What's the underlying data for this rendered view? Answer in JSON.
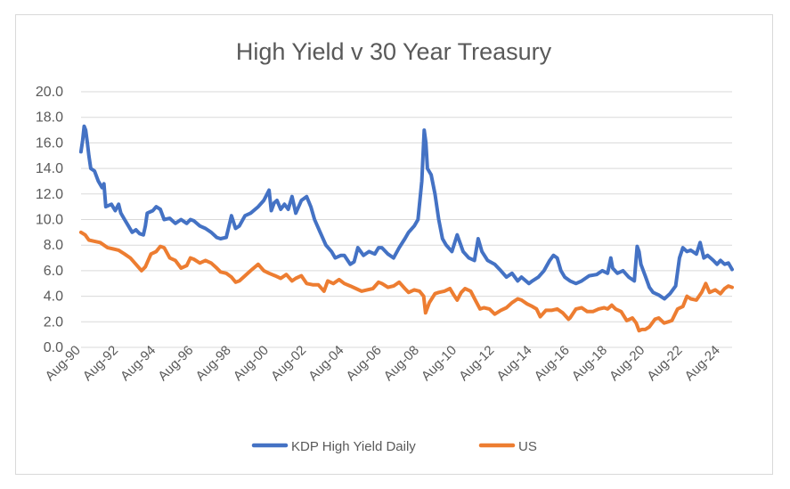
{
  "chart_data": {
    "type": "line",
    "title": "High Yield v 30 Year Treasury",
    "xlabel": "",
    "ylabel": "",
    "ylim": [
      0,
      20
    ],
    "yticks": [
      "0.0",
      "2.0",
      "4.0",
      "6.0",
      "8.0",
      "10.0",
      "12.0",
      "14.0",
      "16.0",
      "18.0",
      "20.0"
    ],
    "xticks": [
      "Aug-90",
      "Aug-92",
      "Aug-94",
      "Aug-96",
      "Aug-98",
      "Aug-00",
      "Aug-02",
      "Aug-04",
      "Aug-06",
      "Aug-08",
      "Aug-10",
      "Aug-12",
      "Aug-14",
      "Aug-16",
      "Aug-18",
      "Aug-20",
      "Aug-22",
      "Aug-24"
    ],
    "xlim": [
      1990.583,
      2025.2
    ],
    "grid": true,
    "legend": "bottom-center",
    "series": [
      {
        "name": "KDP High Yield Daily",
        "color": "#4472c4",
        "points": [
          [
            1990.58,
            15.3
          ],
          [
            1990.67,
            16.2
          ],
          [
            1990.75,
            17.3
          ],
          [
            1990.83,
            17.0
          ],
          [
            1990.92,
            16.0
          ],
          [
            1991.0,
            15.0
          ],
          [
            1991.1,
            14.0
          ],
          [
            1991.3,
            13.8
          ],
          [
            1991.5,
            13.0
          ],
          [
            1991.7,
            12.5
          ],
          [
            1991.8,
            12.8
          ],
          [
            1991.9,
            11.0
          ],
          [
            1992.2,
            11.2
          ],
          [
            1992.4,
            10.7
          ],
          [
            1992.58,
            11.2
          ],
          [
            1992.7,
            10.5
          ],
          [
            1992.9,
            10.0
          ],
          [
            1993.1,
            9.5
          ],
          [
            1993.3,
            9.0
          ],
          [
            1993.5,
            9.2
          ],
          [
            1993.7,
            8.9
          ],
          [
            1993.9,
            8.8
          ],
          [
            1994.0,
            9.5
          ],
          [
            1994.1,
            10.5
          ],
          [
            1994.4,
            10.7
          ],
          [
            1994.58,
            11.0
          ],
          [
            1994.8,
            10.8
          ],
          [
            1995.0,
            10.0
          ],
          [
            1995.3,
            10.1
          ],
          [
            1995.6,
            9.7
          ],
          [
            1995.9,
            10.0
          ],
          [
            1996.2,
            9.7
          ],
          [
            1996.4,
            10.0
          ],
          [
            1996.58,
            9.9
          ],
          [
            1996.9,
            9.5
          ],
          [
            1997.2,
            9.3
          ],
          [
            1997.5,
            9.0
          ],
          [
            1997.8,
            8.6
          ],
          [
            1998.0,
            8.5
          ],
          [
            1998.3,
            8.6
          ],
          [
            1998.58,
            10.3
          ],
          [
            1998.8,
            9.3
          ],
          [
            1999.0,
            9.5
          ],
          [
            1999.3,
            10.3
          ],
          [
            1999.6,
            10.5
          ],
          [
            2000.0,
            11.0
          ],
          [
            2000.3,
            11.5
          ],
          [
            2000.58,
            12.3
          ],
          [
            2000.7,
            10.7
          ],
          [
            2000.85,
            11.3
          ],
          [
            2001.0,
            11.5
          ],
          [
            2001.2,
            10.8
          ],
          [
            2001.4,
            11.2
          ],
          [
            2001.6,
            10.8
          ],
          [
            2001.8,
            11.8
          ],
          [
            2002.0,
            10.5
          ],
          [
            2002.3,
            11.5
          ],
          [
            2002.58,
            11.8
          ],
          [
            2002.8,
            11.0
          ],
          [
            2003.0,
            10.0
          ],
          [
            2003.3,
            9.0
          ],
          [
            2003.6,
            8.0
          ],
          [
            2003.9,
            7.5
          ],
          [
            2004.1,
            7.0
          ],
          [
            2004.4,
            7.2
          ],
          [
            2004.58,
            7.2
          ],
          [
            2004.9,
            6.5
          ],
          [
            2005.1,
            6.7
          ],
          [
            2005.3,
            7.8
          ],
          [
            2005.6,
            7.2
          ],
          [
            2005.9,
            7.5
          ],
          [
            2006.2,
            7.3
          ],
          [
            2006.4,
            7.8
          ],
          [
            2006.58,
            7.8
          ],
          [
            2006.9,
            7.3
          ],
          [
            2007.2,
            7.0
          ],
          [
            2007.5,
            7.8
          ],
          [
            2007.8,
            8.5
          ],
          [
            2008.0,
            9.0
          ],
          [
            2008.3,
            9.5
          ],
          [
            2008.5,
            10.0
          ],
          [
            2008.7,
            13.0
          ],
          [
            2008.83,
            17.0
          ],
          [
            2008.92,
            16.0
          ],
          [
            2009.0,
            14.0
          ],
          [
            2009.2,
            13.5
          ],
          [
            2009.4,
            12.0
          ],
          [
            2009.6,
            10.0
          ],
          [
            2009.8,
            8.5
          ],
          [
            2010.0,
            8.0
          ],
          [
            2010.3,
            7.5
          ],
          [
            2010.58,
            8.8
          ],
          [
            2010.9,
            7.5
          ],
          [
            2011.2,
            7.0
          ],
          [
            2011.5,
            6.8
          ],
          [
            2011.7,
            8.5
          ],
          [
            2011.9,
            7.5
          ],
          [
            2012.2,
            6.8
          ],
          [
            2012.58,
            6.5
          ],
          [
            2012.9,
            6.0
          ],
          [
            2013.2,
            5.5
          ],
          [
            2013.5,
            5.8
          ],
          [
            2013.8,
            5.2
          ],
          [
            2014.0,
            5.5
          ],
          [
            2014.4,
            5.0
          ],
          [
            2014.58,
            5.2
          ],
          [
            2014.9,
            5.5
          ],
          [
            2015.2,
            6.0
          ],
          [
            2015.5,
            6.8
          ],
          [
            2015.7,
            7.2
          ],
          [
            2015.9,
            7.0
          ],
          [
            2016.1,
            6.0
          ],
          [
            2016.3,
            5.5
          ],
          [
            2016.58,
            5.2
          ],
          [
            2016.9,
            5.0
          ],
          [
            2017.2,
            5.2
          ],
          [
            2017.6,
            5.6
          ],
          [
            2018.0,
            5.7
          ],
          [
            2018.3,
            6.0
          ],
          [
            2018.58,
            5.8
          ],
          [
            2018.75,
            7.0
          ],
          [
            2018.85,
            6.2
          ],
          [
            2019.1,
            5.8
          ],
          [
            2019.4,
            6.0
          ],
          [
            2019.7,
            5.5
          ],
          [
            2020.0,
            5.2
          ],
          [
            2020.15,
            7.9
          ],
          [
            2020.25,
            7.5
          ],
          [
            2020.35,
            6.5
          ],
          [
            2020.58,
            5.6
          ],
          [
            2020.8,
            4.7
          ],
          [
            2021.0,
            4.3
          ],
          [
            2021.3,
            4.1
          ],
          [
            2021.6,
            3.8
          ],
          [
            2021.9,
            4.2
          ],
          [
            2022.2,
            4.8
          ],
          [
            2022.4,
            7.0
          ],
          [
            2022.58,
            7.8
          ],
          [
            2022.8,
            7.5
          ],
          [
            2023.0,
            7.6
          ],
          [
            2023.3,
            7.3
          ],
          [
            2023.5,
            8.2
          ],
          [
            2023.7,
            7.0
          ],
          [
            2023.9,
            7.2
          ],
          [
            2024.2,
            6.8
          ],
          [
            2024.4,
            6.5
          ],
          [
            2024.58,
            6.8
          ],
          [
            2024.8,
            6.5
          ],
          [
            2025.0,
            6.6
          ],
          [
            2025.2,
            6.1
          ]
        ]
      },
      {
        "name": "US",
        "color": "#ed7d31",
        "points": [
          [
            1990.58,
            9.0
          ],
          [
            1990.8,
            8.8
          ],
          [
            1991.0,
            8.4
          ],
          [
            1991.3,
            8.3
          ],
          [
            1991.6,
            8.2
          ],
          [
            1992.0,
            7.8
          ],
          [
            1992.3,
            7.7
          ],
          [
            1992.58,
            7.6
          ],
          [
            1992.9,
            7.3
          ],
          [
            1993.2,
            7.0
          ],
          [
            1993.5,
            6.5
          ],
          [
            1993.8,
            6.0
          ],
          [
            1994.0,
            6.3
          ],
          [
            1994.3,
            7.3
          ],
          [
            1994.58,
            7.5
          ],
          [
            1994.8,
            7.9
          ],
          [
            1995.0,
            7.8
          ],
          [
            1995.3,
            7.0
          ],
          [
            1995.6,
            6.8
          ],
          [
            1995.9,
            6.2
          ],
          [
            1996.2,
            6.4
          ],
          [
            1996.4,
            7.0
          ],
          [
            1996.58,
            6.9
          ],
          [
            1996.9,
            6.6
          ],
          [
            1997.2,
            6.8
          ],
          [
            1997.5,
            6.6
          ],
          [
            1997.8,
            6.2
          ],
          [
            1998.0,
            5.9
          ],
          [
            1998.3,
            5.8
          ],
          [
            1998.58,
            5.5
          ],
          [
            1998.8,
            5.1
          ],
          [
            1999.0,
            5.2
          ],
          [
            1999.3,
            5.6
          ],
          [
            1999.6,
            6.0
          ],
          [
            2000.0,
            6.5
          ],
          [
            2000.3,
            6.0
          ],
          [
            2000.58,
            5.8
          ],
          [
            2000.9,
            5.6
          ],
          [
            2001.2,
            5.4
          ],
          [
            2001.5,
            5.7
          ],
          [
            2001.8,
            5.2
          ],
          [
            2002.0,
            5.4
          ],
          [
            2002.3,
            5.6
          ],
          [
            2002.58,
            5.0
          ],
          [
            2002.9,
            4.9
          ],
          [
            2003.2,
            4.9
          ],
          [
            2003.5,
            4.4
          ],
          [
            2003.7,
            5.2
          ],
          [
            2004.0,
            5.0
          ],
          [
            2004.3,
            5.3
          ],
          [
            2004.58,
            5.0
          ],
          [
            2004.9,
            4.8
          ],
          [
            2005.2,
            4.6
          ],
          [
            2005.5,
            4.4
          ],
          [
            2005.8,
            4.5
          ],
          [
            2006.1,
            4.6
          ],
          [
            2006.4,
            5.1
          ],
          [
            2006.58,
            5.0
          ],
          [
            2006.9,
            4.7
          ],
          [
            2007.2,
            4.8
          ],
          [
            2007.5,
            5.1
          ],
          [
            2007.8,
            4.6
          ],
          [
            2008.0,
            4.3
          ],
          [
            2008.3,
            4.5
          ],
          [
            2008.58,
            4.4
          ],
          [
            2008.8,
            4.0
          ],
          [
            2008.9,
            2.7
          ],
          [
            2009.1,
            3.5
          ],
          [
            2009.4,
            4.2
          ],
          [
            2009.6,
            4.3
          ],
          [
            2009.9,
            4.4
          ],
          [
            2010.2,
            4.6
          ],
          [
            2010.4,
            4.1
          ],
          [
            2010.58,
            3.7
          ],
          [
            2010.8,
            4.3
          ],
          [
            2011.0,
            4.6
          ],
          [
            2011.3,
            4.4
          ],
          [
            2011.58,
            3.6
          ],
          [
            2011.8,
            3.0
          ],
          [
            2012.0,
            3.1
          ],
          [
            2012.3,
            3.0
          ],
          [
            2012.58,
            2.6
          ],
          [
            2012.9,
            2.9
          ],
          [
            2013.2,
            3.1
          ],
          [
            2013.5,
            3.5
          ],
          [
            2013.8,
            3.8
          ],
          [
            2014.0,
            3.7
          ],
          [
            2014.3,
            3.4
          ],
          [
            2014.58,
            3.2
          ],
          [
            2014.8,
            3.0
          ],
          [
            2015.0,
            2.4
          ],
          [
            2015.3,
            2.9
          ],
          [
            2015.6,
            2.9
          ],
          [
            2015.9,
            3.0
          ],
          [
            2016.2,
            2.7
          ],
          [
            2016.5,
            2.2
          ],
          [
            2016.58,
            2.3
          ],
          [
            2016.9,
            3.0
          ],
          [
            2017.2,
            3.1
          ],
          [
            2017.5,
            2.8
          ],
          [
            2017.8,
            2.8
          ],
          [
            2018.1,
            3.0
          ],
          [
            2018.4,
            3.1
          ],
          [
            2018.58,
            3.0
          ],
          [
            2018.8,
            3.3
          ],
          [
            2019.0,
            3.0
          ],
          [
            2019.3,
            2.8
          ],
          [
            2019.6,
            2.1
          ],
          [
            2019.9,
            2.3
          ],
          [
            2020.1,
            1.9
          ],
          [
            2020.25,
            1.3
          ],
          [
            2020.4,
            1.4
          ],
          [
            2020.58,
            1.4
          ],
          [
            2020.8,
            1.6
          ],
          [
            2021.1,
            2.2
          ],
          [
            2021.3,
            2.3
          ],
          [
            2021.58,
            1.9
          ],
          [
            2021.8,
            2.0
          ],
          [
            2022.0,
            2.1
          ],
          [
            2022.3,
            3.0
          ],
          [
            2022.58,
            3.2
          ],
          [
            2022.8,
            4.0
          ],
          [
            2023.0,
            3.8
          ],
          [
            2023.3,
            3.7
          ],
          [
            2023.58,
            4.3
          ],
          [
            2023.8,
            5.0
          ],
          [
            2024.0,
            4.3
          ],
          [
            2024.3,
            4.5
          ],
          [
            2024.58,
            4.2
          ],
          [
            2024.8,
            4.6
          ],
          [
            2025.0,
            4.8
          ],
          [
            2025.2,
            4.7
          ]
        ]
      }
    ]
  }
}
